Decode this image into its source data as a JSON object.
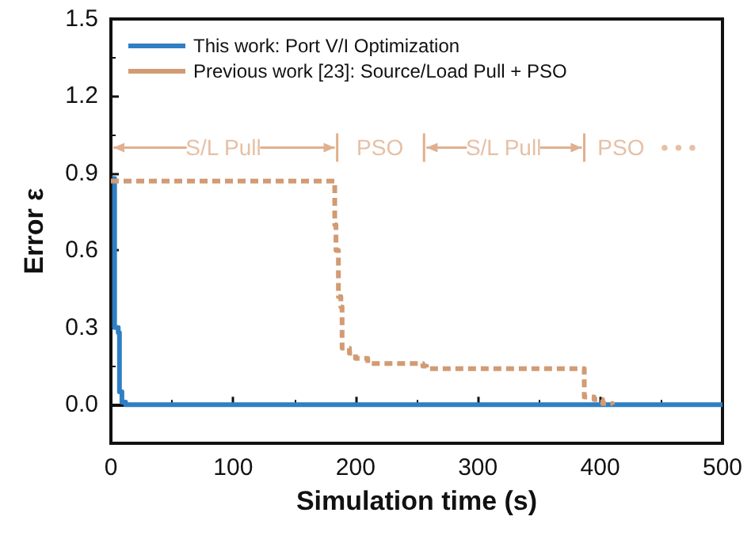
{
  "chart_data": {
    "type": "step",
    "xlabel": "Simulation time (s)",
    "ylabel": "Error ε",
    "xlim": [
      0,
      500
    ],
    "xticks": [
      0,
      100,
      200,
      300,
      400,
      500
    ],
    "ylim": [
      -0.15,
      1.5
    ],
    "yticks": [
      {
        "value": 0,
        "label": "0.0"
      },
      {
        "value": 0.3,
        "label": "0.3"
      },
      {
        "value": 0.6,
        "label": "0.6"
      },
      {
        "value": 0.9,
        "label": "0.9"
      },
      {
        "value": 1.2,
        "label": "1.2"
      },
      {
        "value": 1.5,
        "label": "1.5"
      }
    ],
    "legend": "top left",
    "marker": "none",
    "series": [
      {
        "name": "This work: Port V/I Optimization",
        "color": "#2f7fc4",
        "line_style": "solid",
        "x": [
          1,
          3,
          6,
          7,
          9,
          12,
          500
        ],
        "values": [
          0.88,
          0.3,
          0.28,
          0.05,
          0.01,
          0,
          0
        ]
      },
      {
        "name": "Previous work [23]: Source/Load Pull + PSO",
        "color": "#d29b74",
        "line_style": "dashed",
        "x": [
          0,
          182,
          183,
          184,
          186,
          188,
          189,
          195,
          200,
          210,
          255,
          258,
          385,
          387,
          395,
          402,
          410
        ],
        "values": [
          0.87,
          0.87,
          0.7,
          0.6,
          0.42,
          0.38,
          0.22,
          0.2,
          0.18,
          0.16,
          0.15,
          0.14,
          0.14,
          0.03,
          0.02,
          0.005,
          0
        ]
      }
    ],
    "annotations": [
      "S/L Pull",
      "PSO",
      "S/L Pull",
      "PSO",
      "• • •"
    ]
  }
}
